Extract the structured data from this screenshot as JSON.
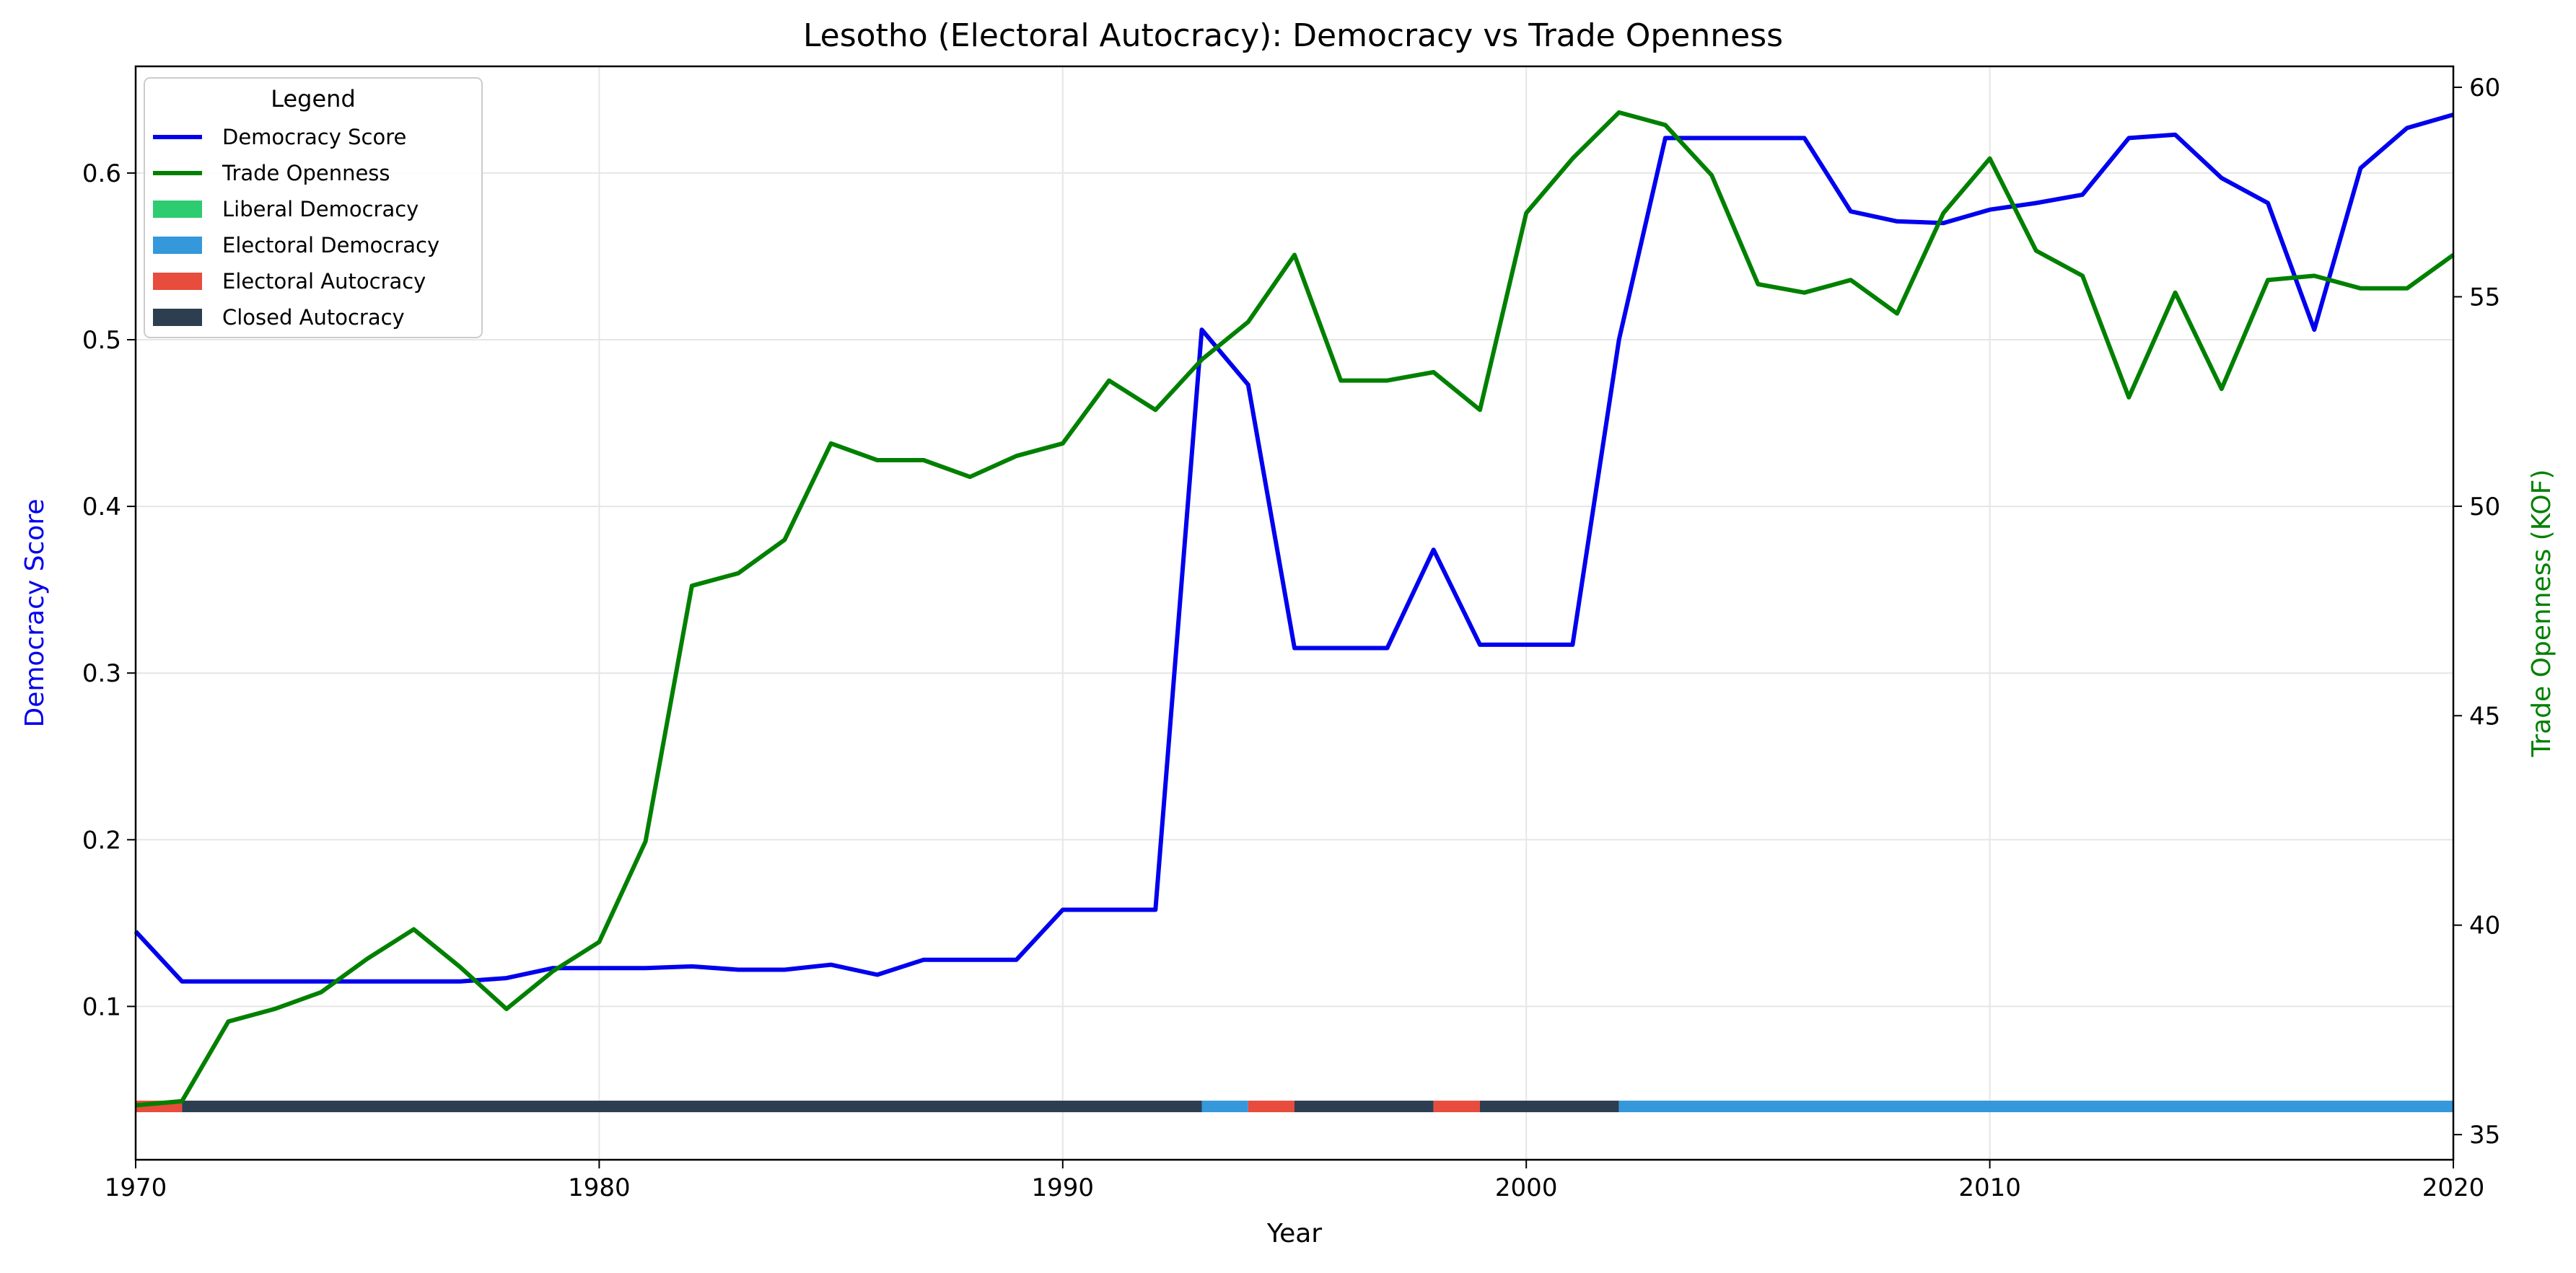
{
  "chart_data": {
    "type": "line",
    "title": "Lesotho (Electoral Autocracy): Democracy vs Trade Openness",
    "xlabel": "Year",
    "ylabel": "Democracy Score",
    "y2label": "Trade Openness (KOF)",
    "xlim": [
      1970,
      2020
    ],
    "ylim": [
      0.008,
      0.664
    ],
    "y2lim": [
      34.4,
      60.5
    ],
    "xticks": [
      1970,
      1980,
      1990,
      2000,
      2010,
      2020
    ],
    "yticks": [
      0.1,
      0.2,
      0.3,
      0.4,
      0.5,
      0.6
    ],
    "y2ticks": [
      35,
      40,
      45,
      50,
      55,
      60
    ],
    "grid": true,
    "legend": {
      "title": "Legend",
      "placement": "top-left",
      "entries": [
        {
          "label": "Democracy Score",
          "kind": "line",
          "color": "#0000ee"
        },
        {
          "label": "Trade Openness",
          "kind": "line",
          "color": "#008000"
        },
        {
          "label": "Liberal Democracy",
          "kind": "patch",
          "color": "#2ecc71"
        },
        {
          "label": "Electoral Democracy",
          "kind": "patch",
          "color": "#3498db"
        },
        {
          "label": "Electoral Autocracy",
          "kind": "patch",
          "color": "#e74c3c"
        },
        {
          "label": "Closed Autocracy",
          "kind": "patch",
          "color": "#2c3e50"
        }
      ]
    },
    "x": [
      1970,
      1971,
      1972,
      1973,
      1974,
      1975,
      1976,
      1977,
      1978,
      1979,
      1980,
      1981,
      1982,
      1983,
      1984,
      1985,
      1986,
      1987,
      1988,
      1989,
      1990,
      1991,
      1992,
      1993,
      1994,
      1995,
      1996,
      1997,
      1998,
      1999,
      2000,
      2001,
      2002,
      2003,
      2004,
      2005,
      2006,
      2007,
      2008,
      2009,
      2010,
      2011,
      2012,
      2013,
      2014,
      2015,
      2016,
      2017,
      2018,
      2019,
      2020
    ],
    "series": [
      {
        "name": "Democracy Score",
        "axis": "left",
        "color": "#0000ee",
        "values": [
          0.145,
          0.115,
          0.115,
          0.115,
          0.115,
          0.115,
          0.115,
          0.115,
          0.117,
          0.123,
          0.123,
          0.123,
          0.124,
          0.122,
          0.122,
          0.125,
          0.119,
          0.128,
          0.128,
          0.128,
          0.158,
          0.158,
          0.158,
          0.506,
          0.473,
          0.315,
          0.315,
          0.315,
          0.374,
          0.317,
          0.317,
          0.317,
          0.5,
          0.621,
          0.621,
          0.621,
          0.621,
          0.577,
          0.571,
          0.57,
          0.578,
          0.582,
          0.587,
          0.621,
          0.623,
          0.597,
          0.582,
          0.506,
          0.603,
          0.627,
          0.635
        ]
      },
      {
        "name": "Trade Openness",
        "axis": "right",
        "color": "#008000",
        "values": [
          35.7,
          35.8,
          37.7,
          38.0,
          38.4,
          39.2,
          39.9,
          39.0,
          38.0,
          38.9,
          39.6,
          42.0,
          48.1,
          48.4,
          49.2,
          51.5,
          51.1,
          51.1,
          50.7,
          51.2,
          51.5,
          53.0,
          52.3,
          53.5,
          54.4,
          56.0,
          53.0,
          53.0,
          53.2,
          52.3,
          57.0,
          58.3,
          59.4,
          59.1,
          57.9,
          55.3,
          55.1,
          55.4,
          54.6,
          57.0,
          58.3,
          56.1,
          55.5,
          52.6,
          55.1,
          52.8,
          55.4,
          55.5,
          55.2,
          55.2,
          56.0
        ]
      }
    ],
    "regime_strip": {
      "y": 0.04,
      "segments": [
        {
          "start": 1970,
          "end": 1971,
          "regime": "Electoral Autocracy",
          "color": "#e74c3c"
        },
        {
          "start": 1971,
          "end": 1993,
          "regime": "Closed Autocracy",
          "color": "#2c3e50"
        },
        {
          "start": 1993,
          "end": 1994,
          "regime": "Electoral Democracy",
          "color": "#3498db"
        },
        {
          "start": 1994,
          "end": 1995,
          "regime": "Electoral Autocracy",
          "color": "#e74c3c"
        },
        {
          "start": 1995,
          "end": 1998,
          "regime": "Closed Autocracy",
          "color": "#2c3e50"
        },
        {
          "start": 1998,
          "end": 1999,
          "regime": "Electoral Autocracy",
          "color": "#e74c3c"
        },
        {
          "start": 1999,
          "end": 2002,
          "regime": "Closed Autocracy",
          "color": "#2c3e50"
        },
        {
          "start": 2002,
          "end": 2020,
          "regime": "Electoral Democracy",
          "color": "#3498db"
        }
      ]
    }
  }
}
